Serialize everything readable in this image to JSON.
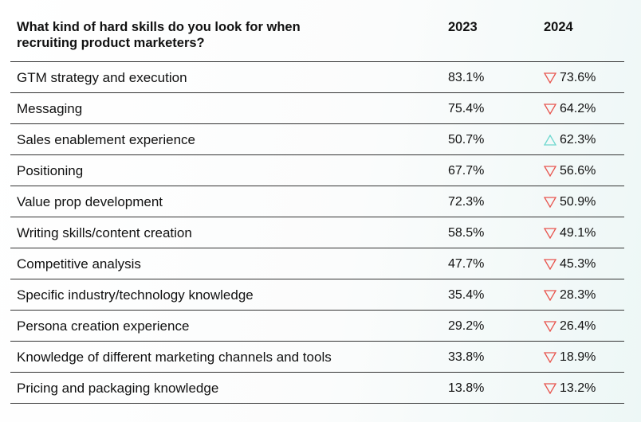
{
  "chart_data": {
    "type": "table",
    "title": "What kind of hard skills do you look for when recruiting product marketers?",
    "columns": [
      "2023",
      "2024"
    ],
    "rows": [
      {
        "label": "GTM strategy and execution",
        "v2023": "83.1%",
        "v2024": "73.6%",
        "trend": "down"
      },
      {
        "label": "Messaging",
        "v2023": "75.4%",
        "v2024": "64.2%",
        "trend": "down"
      },
      {
        "label": "Sales enablement experience",
        "v2023": "50.7%",
        "v2024": "62.3%",
        "trend": "up"
      },
      {
        "label": "Positioning",
        "v2023": "67.7%",
        "v2024": "56.6%",
        "trend": "down"
      },
      {
        "label": "Value prop development",
        "v2023": "72.3%",
        "v2024": "50.9%",
        "trend": "down"
      },
      {
        "label": "Writing skills/content creation",
        "v2023": "58.5%",
        "v2024": "49.1%",
        "trend": "down"
      },
      {
        "label": "Competitive analysis",
        "v2023": "47.7%",
        "v2024": "45.3%",
        "trend": "down"
      },
      {
        "label": "Specific industry/technology knowledge",
        "v2023": "35.4%",
        "v2024": "28.3%",
        "trend": "down"
      },
      {
        "label": "Persona creation experience",
        "v2023": "29.2%",
        "v2024": "26.4%",
        "trend": "down"
      },
      {
        "label": "Knowledge of different marketing channels and tools",
        "v2023": "33.8%",
        "v2024": "18.9%",
        "trend": "down"
      },
      {
        "label": "Pricing and packaging knowledge",
        "v2023": "13.8%",
        "v2024": "13.2%",
        "trend": "down"
      }
    ]
  },
  "colors": {
    "down": "#e8554e",
    "up": "#6fd8cf",
    "rule": "#333333"
  },
  "icons": {
    "down": "triangle-down-icon",
    "up": "triangle-up-icon"
  }
}
